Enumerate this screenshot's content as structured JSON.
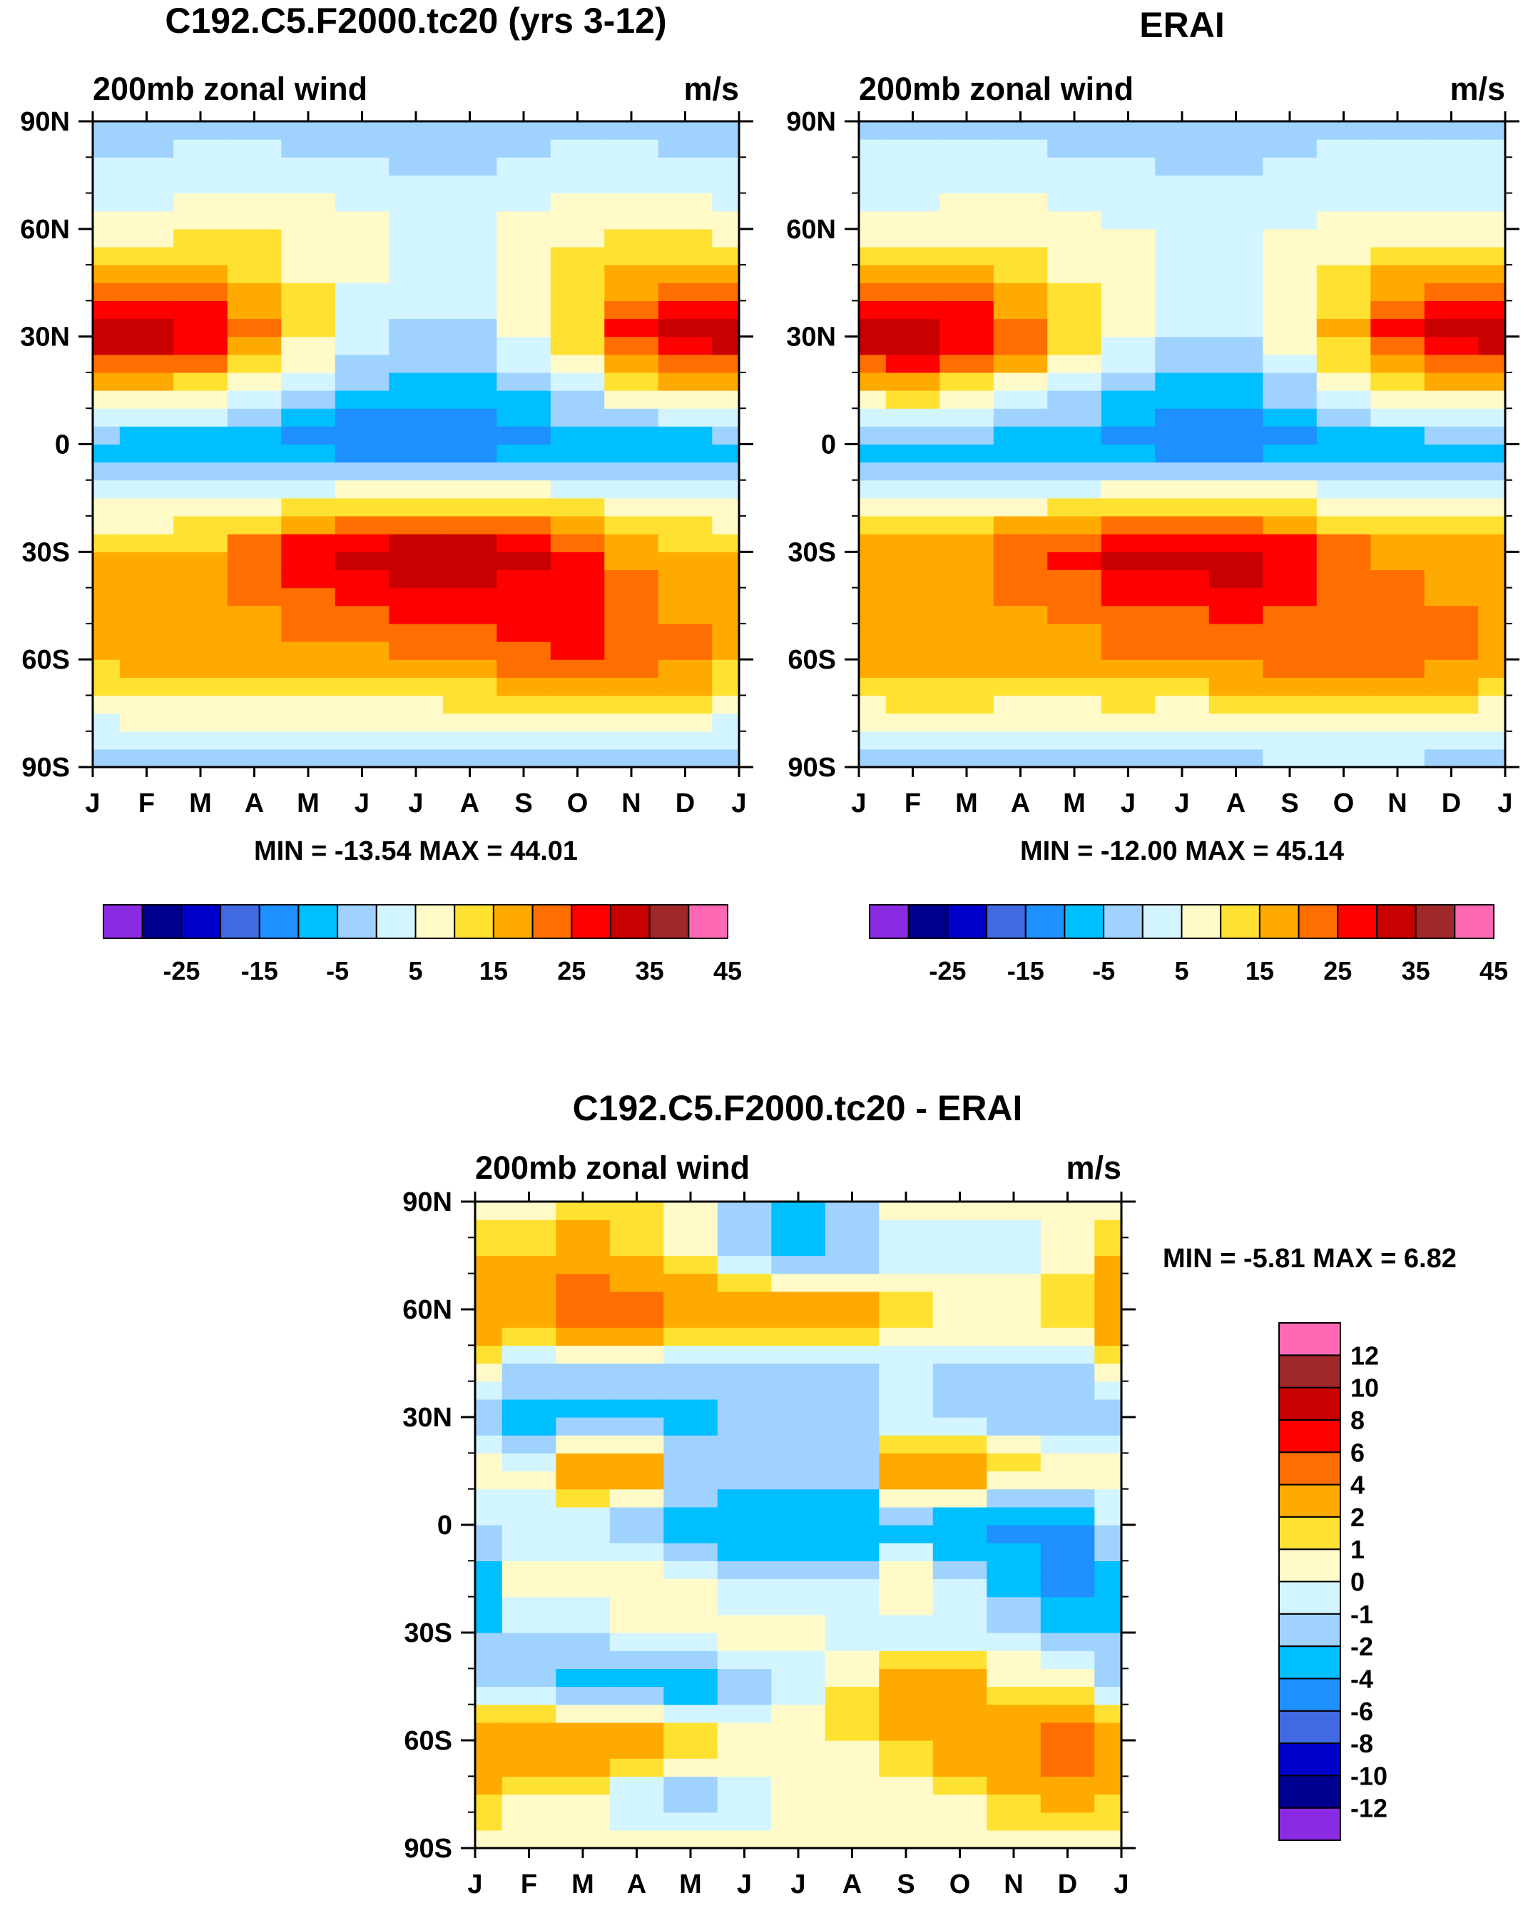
{
  "chart_data": [
    {
      "type": "heatmap",
      "title": "C192.C5.F2000.tc20 (yrs 3-12)",
      "left_label": "200mb zonal wind",
      "right_label": "m/s",
      "x_ticks": [
        "J",
        "F",
        "M",
        "A",
        "M",
        "J",
        "J",
        "A",
        "S",
        "O",
        "N",
        "D",
        "J"
      ],
      "y_ticks": [
        "90N",
        "60N",
        "30N",
        "0",
        "30S",
        "60S",
        "90S"
      ],
      "ylim": [
        -90,
        90
      ],
      "stats": "MIN = -13.54 MAX =  44.01",
      "colorbar": {
        "orientation": "horizontal",
        "colors": [
          "#8a2be2",
          "#000090",
          "#0000cd",
          "#4169e1",
          "#1e90ff",
          "#00bfff",
          "#a0d2ff",
          "#d2f5ff",
          "#fffac8",
          "#ffe132",
          "#ffaa00",
          "#ff6e00",
          "#ff0000",
          "#c80000",
          "#a02828",
          "#ff69b4"
        ],
        "levels": [
          -30,
          -25,
          -20,
          -15,
          -10,
          -5,
          0,
          5,
          10,
          15,
          20,
          25,
          30,
          35,
          40,
          45
        ],
        "tick_labels": [
          "-25",
          "-15",
          "-5",
          "5",
          "15",
          "25",
          "35",
          "45"
        ]
      },
      "series": [
        {
          "name": "J",
          "lat": [
            -90,
            -60,
            -30,
            0,
            30,
            60,
            90
          ],
          "values": [
            2,
            20,
            20,
            -3,
            40,
            12,
            2
          ]
        },
        {
          "name": "F",
          "lat": [
            -90,
            -60,
            -30,
            0,
            30,
            60,
            90
          ],
          "values": [
            2,
            22,
            20,
            -4,
            41,
            12,
            2
          ]
        },
        {
          "name": "M",
          "lat": [
            -90,
            -60,
            -30,
            0,
            30,
            60,
            90
          ],
          "values": [
            2,
            24,
            22,
            -4,
            36,
            14,
            2
          ]
        },
        {
          "name": "A",
          "lat": [
            -90,
            -60,
            -30,
            0,
            30,
            60,
            90
          ],
          "values": [
            2,
            22,
            28,
            -6,
            26,
            15,
            2
          ]
        },
        {
          "name": "M",
          "lat": [
            -90,
            -60,
            -30,
            0,
            30,
            60,
            90
          ],
          "values": [
            2,
            22,
            34,
            -8,
            16,
            14,
            1
          ]
        },
        {
          "name": "J",
          "lat": [
            -90,
            -60,
            -30,
            0,
            30,
            60,
            90
          ],
          "values": [
            2,
            22,
            38,
            -10,
            8,
            12,
            0
          ]
        },
        {
          "name": "J",
          "lat": [
            -90,
            -60,
            -30,
            0,
            30,
            60,
            90
          ],
          "values": [
            1,
            24,
            40,
            -11,
            4,
            10,
            0
          ]
        },
        {
          "name": "A",
          "lat": [
            -90,
            -60,
            -30,
            0,
            30,
            60,
            90
          ],
          "values": [
            1,
            26,
            40,
            -11,
            4,
            10,
            0
          ]
        },
        {
          "name": "S",
          "lat": [
            -90,
            -60,
            -30,
            0,
            30,
            60,
            90
          ],
          "values": [
            2,
            28,
            36,
            -8,
            10,
            12,
            1
          ]
        },
        {
          "name": "O",
          "lat": [
            -90,
            -60,
            -30,
            0,
            30,
            60,
            90
          ],
          "values": [
            2,
            30,
            30,
            -6,
            20,
            14,
            2
          ]
        },
        {
          "name": "N",
          "lat": [
            -90,
            -60,
            -30,
            0,
            30,
            60,
            90
          ],
          "values": [
            2,
            30,
            24,
            -5,
            32,
            14,
            2
          ]
        },
        {
          "name": "D",
          "lat": [
            -90,
            -60,
            -30,
            0,
            30,
            60,
            90
          ],
          "values": [
            2,
            26,
            22,
            -4,
            38,
            13,
            2
          ]
        },
        {
          "name": "J",
          "lat": [
            -90,
            -60,
            -30,
            0,
            30,
            60,
            90
          ],
          "values": [
            2,
            20,
            20,
            -3,
            40,
            12,
            2
          ]
        }
      ]
    },
    {
      "type": "heatmap",
      "title": "ERAI",
      "left_label": "200mb zonal wind",
      "right_label": "m/s",
      "x_ticks": [
        "J",
        "F",
        "M",
        "A",
        "M",
        "J",
        "J",
        "A",
        "S",
        "O",
        "N",
        "D",
        "J"
      ],
      "y_ticks": [
        "90N",
        "60N",
        "30N",
        "0",
        "30S",
        "60S",
        "90S"
      ],
      "ylim": [
        -90,
        90
      ],
      "stats": "MIN = -12.00 MAX =  45.14",
      "colorbar": {
        "orientation": "horizontal",
        "colors": [
          "#8a2be2",
          "#000090",
          "#0000cd",
          "#4169e1",
          "#1e90ff",
          "#00bfff",
          "#a0d2ff",
          "#d2f5ff",
          "#fffac8",
          "#ffe132",
          "#ffaa00",
          "#ff6e00",
          "#ff0000",
          "#c80000",
          "#a02828",
          "#ff69b4"
        ],
        "levels": [
          -30,
          -25,
          -20,
          -15,
          -10,
          -5,
          0,
          5,
          10,
          15,
          20,
          25,
          30,
          35,
          40,
          45
        ],
        "tick_labels": [
          "-25",
          "-15",
          "-5",
          "5",
          "15",
          "25",
          "35",
          "45"
        ]
      },
      "series": [
        {
          "name": "J",
          "lat": [
            -90,
            -60,
            -30,
            0,
            30,
            60,
            90
          ],
          "values": [
            3,
            22,
            24,
            -3,
            40,
            12,
            3
          ]
        },
        {
          "name": "F",
          "lat": [
            -90,
            -60,
            -30,
            0,
            30,
            60,
            90
          ],
          "values": [
            3,
            24,
            24,
            -3,
            41,
            12,
            3
          ]
        },
        {
          "name": "M",
          "lat": [
            -90,
            -60,
            -30,
            0,
            30,
            60,
            90
          ],
          "values": [
            3,
            24,
            25,
            -3,
            36,
            13,
            3
          ]
        },
        {
          "name": "A",
          "lat": [
            -90,
            -60,
            -30,
            0,
            30,
            60,
            90
          ],
          "values": [
            3,
            22,
            28,
            -4,
            28,
            13,
            3
          ]
        },
        {
          "name": "M",
          "lat": [
            -90,
            -60,
            -30,
            0,
            30,
            60,
            90
          ],
          "values": [
            3,
            22,
            32,
            -6,
            18,
            12,
            2
          ]
        },
        {
          "name": "J",
          "lat": [
            -90,
            -60,
            -30,
            0,
            30,
            60,
            90
          ],
          "values": [
            3,
            24,
            36,
            -8,
            10,
            10,
            2
          ]
        },
        {
          "name": "J",
          "lat": [
            -90,
            -60,
            -30,
            0,
            30,
            60,
            90
          ],
          "values": [
            2,
            24,
            38,
            -9,
            6,
            8,
            2
          ]
        },
        {
          "name": "A",
          "lat": [
            -90,
            -60,
            -30,
            0,
            30,
            60,
            90
          ],
          "values": [
            2,
            26,
            38,
            -9,
            6,
            8,
            2
          ]
        },
        {
          "name": "S",
          "lat": [
            -90,
            -60,
            -30,
            0,
            30,
            60,
            90
          ],
          "values": [
            3,
            27,
            34,
            -7,
            12,
            10,
            2
          ]
        },
        {
          "name": "O",
          "lat": [
            -90,
            -60,
            -30,
            0,
            30,
            60,
            90
          ],
          "values": [
            3,
            28,
            28,
            -5,
            22,
            12,
            3
          ]
        },
        {
          "name": "N",
          "lat": [
            -90,
            -60,
            -30,
            0,
            30,
            60,
            90
          ],
          "values": [
            3,
            28,
            24,
            -4,
            32,
            12,
            3
          ]
        },
        {
          "name": "D",
          "lat": [
            -90,
            -60,
            -30,
            0,
            30,
            60,
            90
          ],
          "values": [
            3,
            26,
            24,
            -3,
            38,
            12,
            3
          ]
        },
        {
          "name": "J",
          "lat": [
            -90,
            -60,
            -30,
            0,
            30,
            60,
            90
          ],
          "values": [
            3,
            22,
            24,
            -3,
            40,
            12,
            3
          ]
        }
      ]
    },
    {
      "type": "heatmap",
      "title": "C192.C5.F2000.tc20 - ERAI",
      "left_label": "200mb zonal wind",
      "right_label": "m/s",
      "x_ticks": [
        "J",
        "F",
        "M",
        "A",
        "M",
        "J",
        "J",
        "A",
        "S",
        "O",
        "N",
        "D",
        "J"
      ],
      "y_ticks": [
        "90N",
        "60N",
        "30N",
        "0",
        "30S",
        "60S",
        "90S"
      ],
      "ylim": [
        -90,
        90
      ],
      "stats": "MIN =  -5.81 MAX =   6.82",
      "colorbar": {
        "orientation": "vertical",
        "colors": [
          "#8a2be2",
          "#000090",
          "#0000cd",
          "#4169e1",
          "#1e90ff",
          "#00bfff",
          "#a0d2ff",
          "#d2f5ff",
          "#fffac8",
          "#ffe132",
          "#ffaa00",
          "#ff6e00",
          "#ff0000",
          "#c80000",
          "#a02828",
          "#ff69b4"
        ],
        "levels": [
          -14,
          -12,
          -10,
          -8,
          -6,
          -4,
          -2,
          -1,
          0,
          1,
          2,
          4,
          6,
          8,
          10,
          12
        ],
        "tick_labels": [
          "12",
          "10",
          "8",
          "6",
          "4",
          "2",
          "1",
          "0",
          "-1",
          "-2",
          "-4",
          "-6",
          "-8",
          "-10",
          "-12"
        ]
      },
      "series": [
        {
          "name": "J",
          "lat": [
            -90,
            -75,
            -60,
            -45,
            -30,
            -15,
            0,
            15,
            30,
            45,
            60,
            75,
            90
          ],
          "values": [
            0.5,
            2,
            4,
            -1,
            -2,
            -3,
            -1,
            0.5,
            -2,
            1,
            4,
            2,
            0.5
          ]
        },
        {
          "name": "F",
          "lat": [
            -90,
            -75,
            -60,
            -45,
            -30,
            -15,
            0,
            15,
            30,
            45,
            60,
            75,
            90
          ],
          "values": [
            0.5,
            1,
            4,
            -2,
            -1,
            0.5,
            -1,
            0.5,
            -3,
            -1,
            3,
            2,
            0.5
          ]
        },
        {
          "name": "M",
          "lat": [
            -90,
            -75,
            -60,
            -45,
            -30,
            -15,
            0,
            15,
            30,
            45,
            60,
            75,
            90
          ],
          "values": [
            0.5,
            1,
            4,
            -3,
            -1,
            0.5,
            -1,
            4,
            -3,
            -1,
            5,
            3,
            1
          ]
        },
        {
          "name": "A",
          "lat": [
            -90,
            -75,
            -60,
            -45,
            -30,
            -15,
            0,
            15,
            30,
            45,
            60,
            75,
            90
          ],
          "values": [
            0.5,
            -1,
            3,
            -3,
            0.5,
            1,
            -2,
            3,
            -3,
            -1,
            5,
            2,
            1
          ]
        },
        {
          "name": "M",
          "lat": [
            -90,
            -75,
            -60,
            -45,
            -30,
            -15,
            0,
            15,
            30,
            45,
            60,
            75,
            90
          ],
          "values": [
            0.5,
            -2,
            2,
            -3,
            0.5,
            0.5,
            -3,
            -1,
            -3,
            -1,
            3,
            1,
            0.5
          ]
        },
        {
          "name": "J",
          "lat": [
            -90,
            -75,
            -60,
            -45,
            -30,
            -15,
            0,
            15,
            30,
            45,
            60,
            75,
            90
          ],
          "values": [
            0.5,
            -1,
            1,
            -2,
            0.5,
            -1,
            -4,
            -1,
            -2,
            -1,
            3,
            -1,
            -2
          ]
        },
        {
          "name": "J",
          "lat": [
            -90,
            -75,
            -60,
            -45,
            -30,
            -15,
            0,
            15,
            30,
            45,
            60,
            75,
            90
          ],
          "values": [
            0.5,
            0.5,
            1,
            -1,
            0.5,
            -1,
            -4,
            -1,
            -2,
            -1,
            4,
            -3,
            -2
          ]
        },
        {
          "name": "A",
          "lat": [
            -90,
            -75,
            -60,
            -45,
            -30,
            -15,
            0,
            15,
            30,
            45,
            60,
            75,
            90
          ],
          "values": [
            0.5,
            0.5,
            1,
            1,
            -1,
            -1,
            -4,
            -1,
            -2,
            -1,
            3,
            -2,
            -1
          ]
        },
        {
          "name": "S",
          "lat": [
            -90,
            -75,
            -60,
            -45,
            -30,
            -15,
            0,
            15,
            30,
            45,
            60,
            75,
            90
          ],
          "values": [
            0.5,
            0.5,
            2,
            3,
            -1,
            1,
            -3,
            3,
            -1,
            -1,
            2,
            -1,
            0.5
          ]
        },
        {
          "name": "O",
          "lat": [
            -90,
            -75,
            -60,
            -45,
            -30,
            -15,
            0,
            15,
            30,
            45,
            60,
            75,
            90
          ],
          "values": [
            0.5,
            1,
            3,
            3,
            -1,
            -1,
            -4,
            4,
            -2,
            -1,
            1,
            -1,
            0.5
          ]
        },
        {
          "name": "N",
          "lat": [
            -90,
            -75,
            -60,
            -45,
            -30,
            -15,
            0,
            15,
            30,
            45,
            60,
            75,
            90
          ],
          "values": [
            0.5,
            2,
            4,
            1,
            -1,
            -3,
            -5,
            2,
            -2,
            -1,
            1,
            -1,
            0.5
          ]
        },
        {
          "name": "D",
          "lat": [
            -90,
            -75,
            -60,
            -45,
            -30,
            -15,
            0,
            15,
            30,
            45,
            60,
            75,
            90
          ],
          "values": [
            0.5,
            3,
            6,
            0.5,
            -2,
            -5,
            -5,
            1,
            -2,
            -1,
            2,
            0.5,
            0.5
          ]
        },
        {
          "name": "J",
          "lat": [
            -90,
            -75,
            -60,
            -45,
            -30,
            -15,
            0,
            15,
            30,
            45,
            60,
            75,
            90
          ],
          "values": [
            0.5,
            2,
            4,
            -1,
            -2,
            -3,
            -1,
            0.5,
            -2,
            1,
            4,
            2,
            0.5
          ]
        }
      ]
    }
  ]
}
